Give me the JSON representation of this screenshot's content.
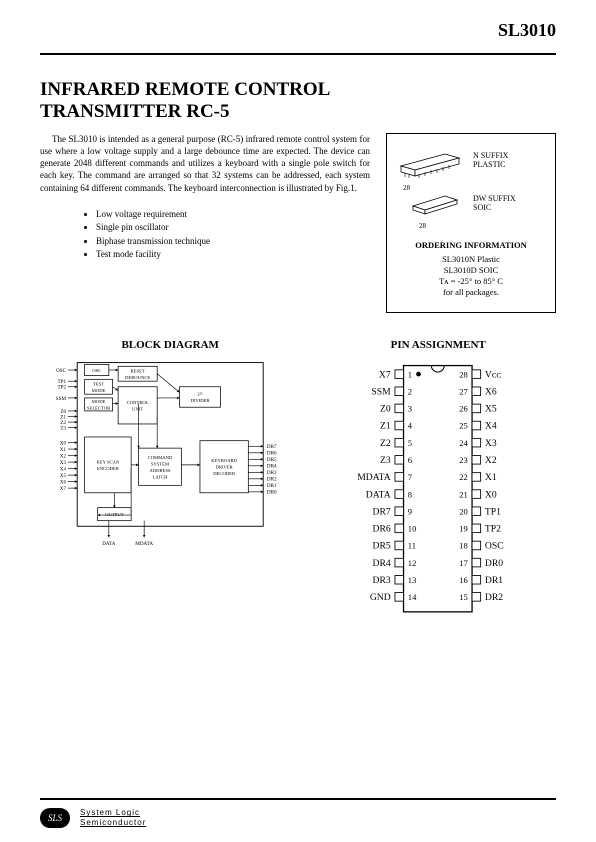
{
  "header": {
    "part_number": "SL3010"
  },
  "title": {
    "line1": "INFRARED REMOTE CONTROL",
    "line2": "TRANSMITTER RC-5"
  },
  "intro": "The SL3010 is intended as  a general  purpose  (RC-5) infrared remote control system for use where a low voltage supply and a large debounce time are expected. The device can generate 2048 different commands and utilizes a keyboard with a single pole switch for each key. The command are arranged so that 32 systems can be addressed, each  system containing 64 different commands. The keyboard interconnection is illustrated by Fig.1.",
  "features": [
    "Low voltage requirement",
    "Single pin oscillator",
    "Biphase transmission technique",
    "Test mode facility"
  ],
  "package_box": {
    "pkg1_label": "N SUFFIX\nPLASTIC",
    "pkg1_pin": "28",
    "pkg2_label": "DW SUFFIX\nSOIC",
    "pkg2_pin": "28",
    "ordering_title": "ORDERING INFORMATION",
    "lines": [
      "SL3010N Plastic",
      "SL3010D SOIC",
      "Tᴀ = -25° to 85° C",
      "for all packages."
    ]
  },
  "block_diagram": {
    "title": "BLOCK DIAGRAM",
    "left_inputs": [
      "OSC",
      "TP1",
      "TP2",
      "SSM",
      "Z0",
      "Z1",
      "Z2",
      "Z3",
      "X0",
      "X1",
      "X2",
      "X3",
      "X4",
      "X5",
      "X6",
      "X7"
    ],
    "boxes": {
      "osc": "OSC",
      "test": "TEST\nMODE",
      "reset": "RESET\nDEBOUNCE",
      "mode": "MODE\nSELECTOR",
      "ctrl": "CONTROL\nUNIT",
      "divider": "2¹³\nDIVIDER",
      "keyscan": "KEY SCAN\nENCODER",
      "addr": "COMMAND\nSYSTEM\nADDRESS\nLATCH",
      "kbd": "KEYBOARD\nDRIVER\nDECODER",
      "output": "OUTPUT"
    },
    "right_outputs": [
      "DR7",
      "DR6",
      "DR5",
      "DR4",
      "DR3",
      "DR2",
      "DR1",
      "DR0"
    ],
    "bottom_outputs": [
      "DATA",
      "MDATA"
    ]
  },
  "pin_assignment": {
    "title": "PIN ASSIGNMENT",
    "pin_count": 28,
    "left": [
      {
        "n": 1,
        "label": "X7",
        "dot": true
      },
      {
        "n": 2,
        "label": "SSM"
      },
      {
        "n": 3,
        "label": "Z0"
      },
      {
        "n": 4,
        "label": "Z1"
      },
      {
        "n": 5,
        "label": "Z2"
      },
      {
        "n": 6,
        "label": "Z3"
      },
      {
        "n": 7,
        "label": "MDATA"
      },
      {
        "n": 8,
        "label": "DATA"
      },
      {
        "n": 9,
        "label": "DR7"
      },
      {
        "n": 10,
        "label": "DR6"
      },
      {
        "n": 11,
        "label": "DR5"
      },
      {
        "n": 12,
        "label": "DR4"
      },
      {
        "n": 13,
        "label": "DR3"
      },
      {
        "n": 14,
        "label": "GND"
      }
    ],
    "right": [
      {
        "n": 28,
        "label": "Vᴄᴄ"
      },
      {
        "n": 27,
        "label": "X6"
      },
      {
        "n": 26,
        "label": "X5"
      },
      {
        "n": 25,
        "label": "X4"
      },
      {
        "n": 24,
        "label": "X3"
      },
      {
        "n": 23,
        "label": "X2"
      },
      {
        "n": 22,
        "label": "X1"
      },
      {
        "n": 21,
        "label": "X0"
      },
      {
        "n": 20,
        "label": "TP1"
      },
      {
        "n": 19,
        "label": "TP2"
      },
      {
        "n": 18,
        "label": "OSC"
      },
      {
        "n": 17,
        "label": "DR0"
      },
      {
        "n": 16,
        "label": "DR1"
      },
      {
        "n": 15,
        "label": "DR2"
      }
    ]
  },
  "footer": {
    "badge": "SLS",
    "line1": "System Logic",
    "line2": "Semiconductor"
  },
  "style": {
    "title_fontsize": 19,
    "header_fontsize": 18,
    "block_stroke": "#000000",
    "block_fill": "#ffffff",
    "svg_font": 6
  }
}
